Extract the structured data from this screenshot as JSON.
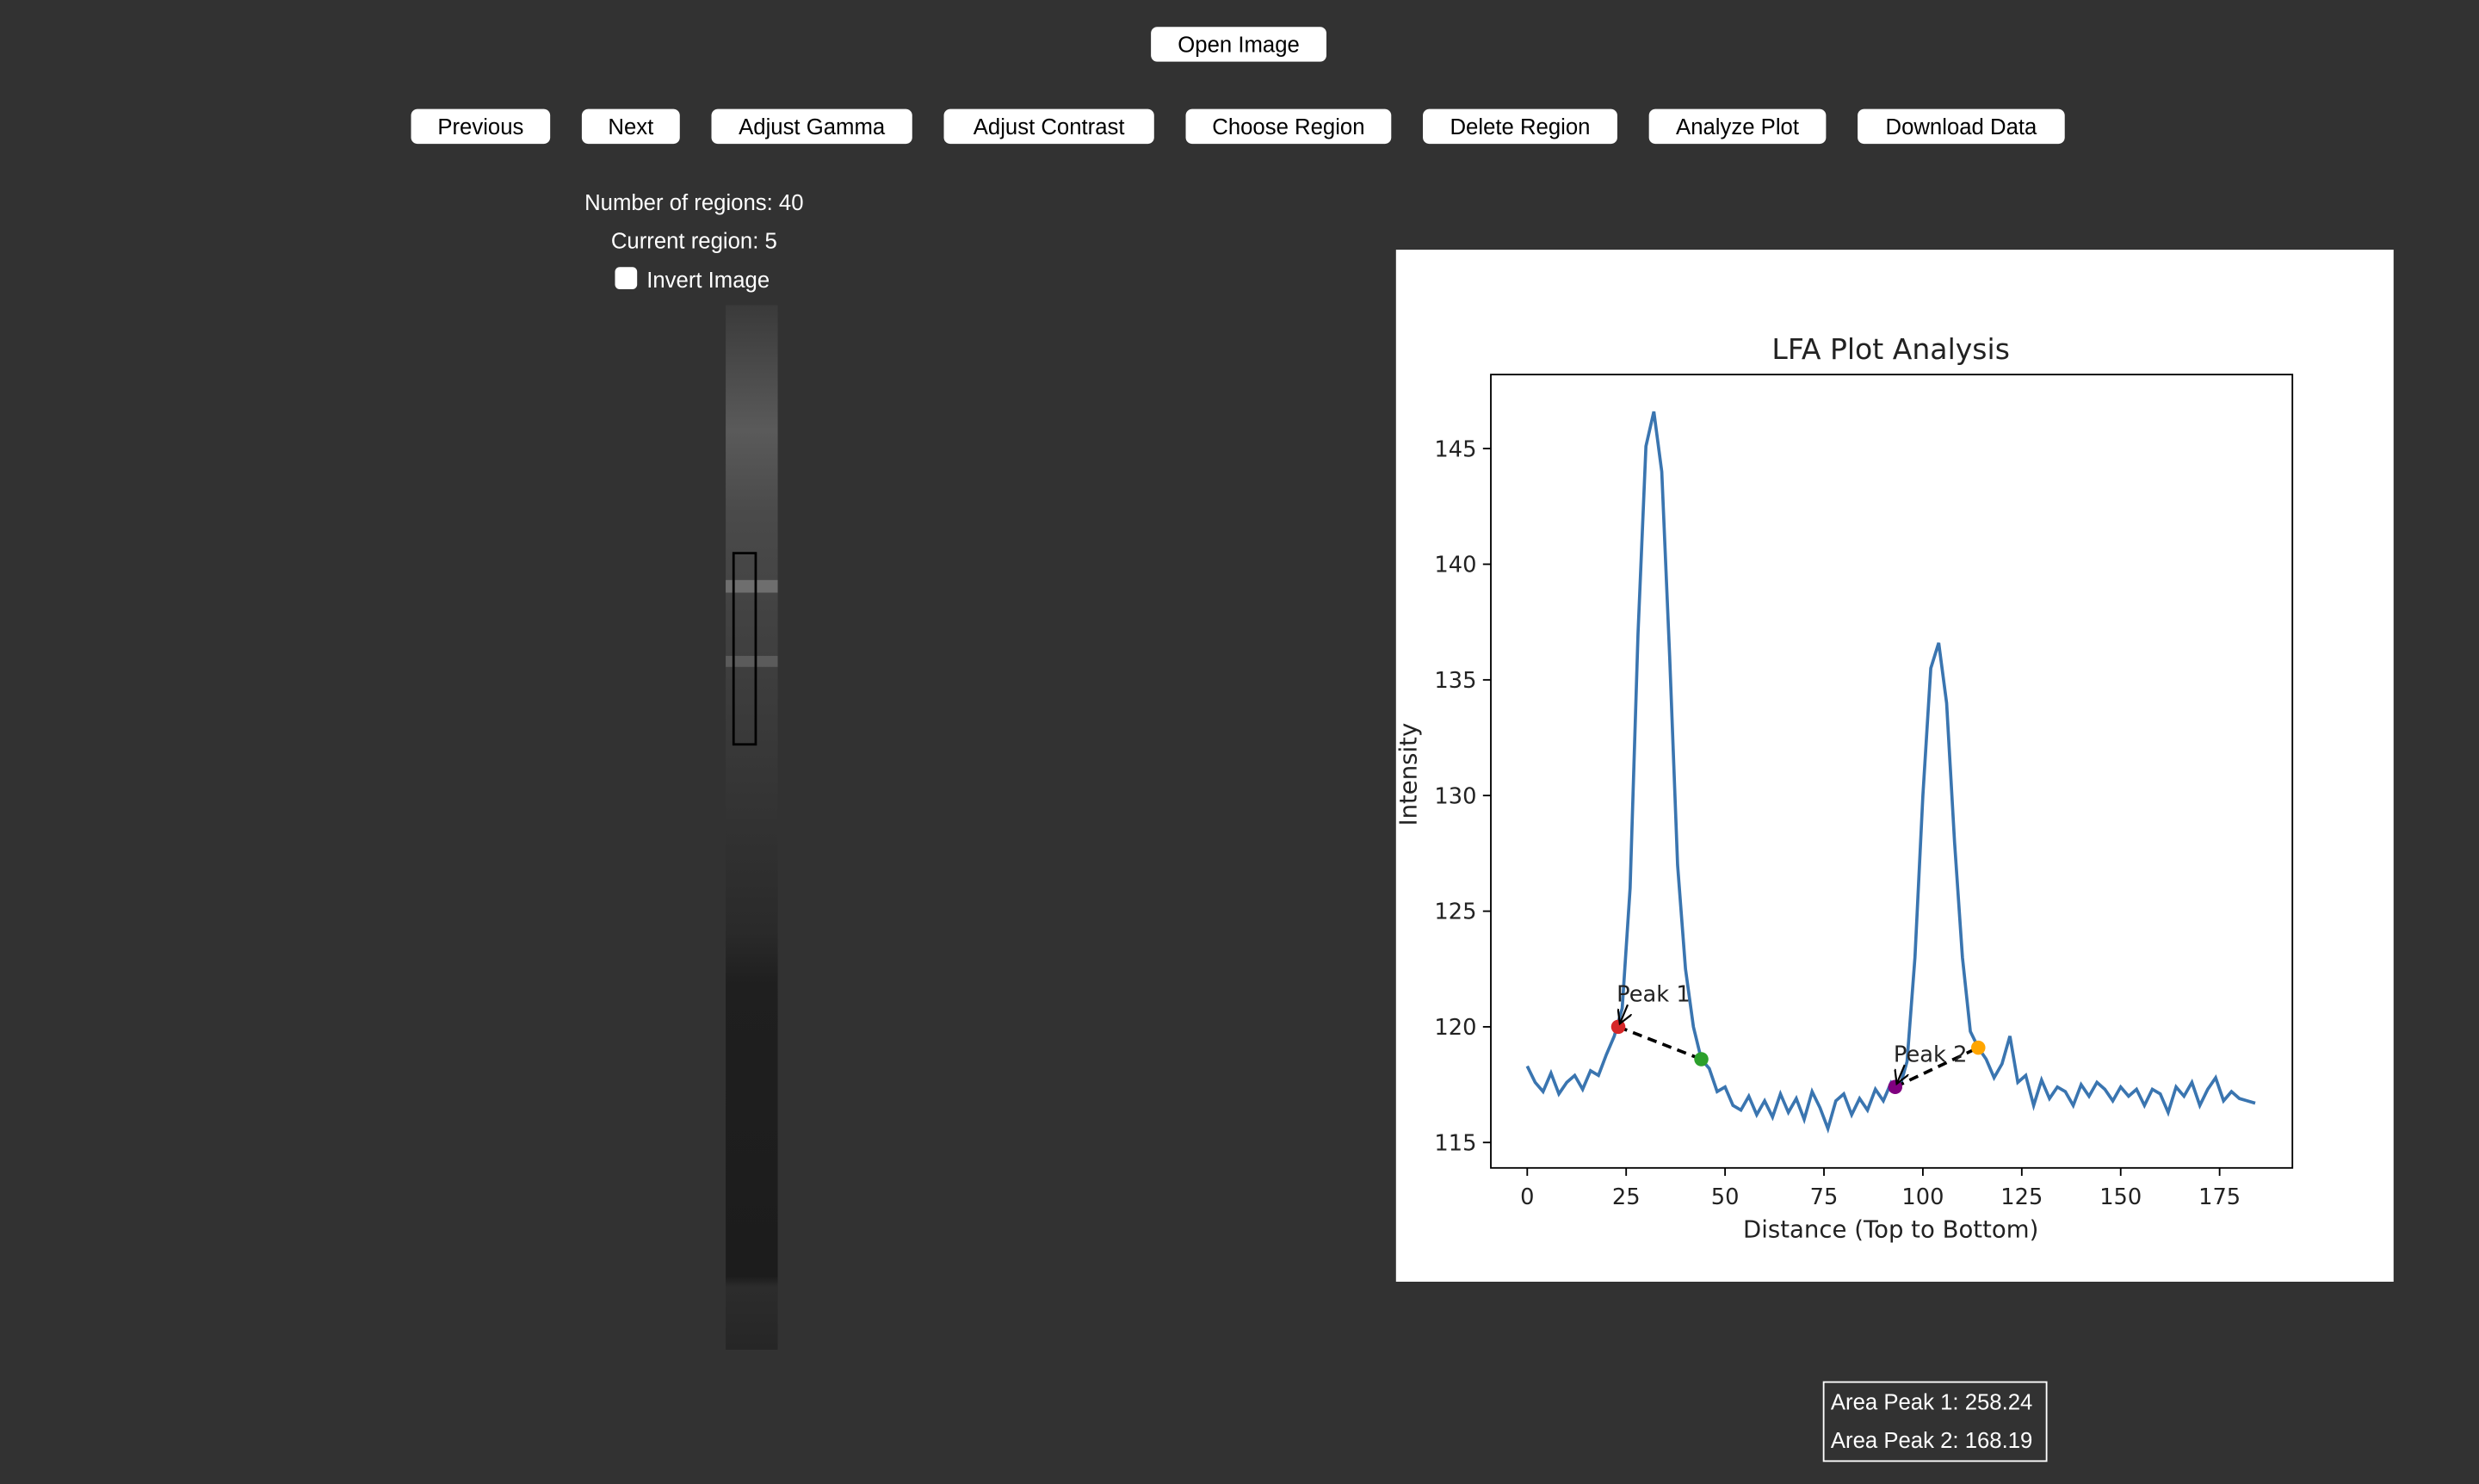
{
  "toolbar": {
    "open": "Open Image",
    "buttons": [
      "Previous",
      "Next",
      "Adjust Gamma",
      "Adjust Contrast",
      "Choose Region",
      "Delete Region",
      "Analyze Plot",
      "Download Data"
    ]
  },
  "status": {
    "regions": "Number of regions: 40",
    "current": "Current region: 5",
    "invert": "Invert Image"
  },
  "chart_data": {
    "type": "line",
    "title": "LFA Plot Analysis",
    "x_label": "Distance (Top to Bottom)",
    "y_label": "Intensity",
    "color": "#3a75b0",
    "x": [
      0,
      2,
      4,
      6,
      8,
      10,
      12,
      14,
      16,
      18,
      20,
      22,
      24,
      26,
      28,
      30,
      32,
      34,
      36,
      38,
      40,
      42,
      44,
      46,
      48,
      50,
      52,
      54,
      56,
      58,
      60,
      62,
      64,
      66,
      68,
      70,
      72,
      74,
      76,
      78,
      80,
      82,
      84,
      86,
      88,
      90,
      92,
      94,
      96,
      98,
      100,
      102,
      104,
      106,
      108,
      110,
      112,
      114,
      116,
      118,
      120,
      122,
      124,
      126,
      128,
      130,
      132,
      134,
      136,
      138,
      140,
      142,
      144,
      146,
      148,
      150,
      152,
      154,
      156,
      158,
      160,
      162,
      164,
      166,
      168,
      170,
      172,
      174,
      176,
      178,
      180,
      182,
      184
    ],
    "values": [
      118.3,
      117.6,
      117.2,
      118.0,
      117.1,
      117.6,
      117.9,
      117.3,
      118.1,
      117.9,
      118.8,
      119.6,
      120.8,
      126,
      137,
      145.1,
      146.6,
      144,
      136,
      127,
      122.5,
      120,
      118.6,
      118.2,
      117.2,
      117.4,
      116.6,
      116.4,
      117.0,
      116.2,
      116.8,
      116.1,
      117.1,
      116.3,
      116.9,
      116.0,
      117.2,
      116.5,
      115.6,
      116.8,
      117.1,
      116.2,
      116.9,
      116.4,
      117.3,
      116.8,
      117.6,
      117.3,
      118.5,
      123,
      130,
      135.5,
      136.6,
      134,
      128,
      123,
      119.8,
      119.1,
      118.6,
      117.8,
      118.4,
      119.6,
      117.6,
      117.9,
      116.6,
      117.7,
      116.9,
      117.4,
      117.2,
      116.6,
      117.5,
      117.0,
      117.6,
      117.3,
      116.8,
      117.4,
      117.0,
      117.3,
      116.6,
      117.3,
      117.1,
      116.3,
      117.4,
      117.0,
      117.6,
      116.6,
      117.3,
      117.8,
      116.8,
      117.2,
      116.9,
      116.8,
      116.7
    ],
    "xlim": [
      -9.2,
      193.4
    ],
    "ylim": [
      113.9,
      148.2
    ],
    "xticks": [
      0,
      25,
      50,
      75,
      100,
      125,
      150,
      175
    ],
    "yticks": [
      115,
      120,
      125,
      130,
      135,
      140,
      145
    ],
    "peaks": [
      {
        "label": "Peak 1",
        "start": {
          "x": 23,
          "y": 120.0,
          "color": "#d62728"
        },
        "end": {
          "x": 44,
          "y": 118.6,
          "color": "#2ca02c"
        }
      },
      {
        "label": "Peak 2",
        "start": {
          "x": 93,
          "y": 117.4,
          "color": "#800080"
        },
        "end": {
          "x": 114,
          "y": 119.1,
          "color": "#ffa500"
        }
      }
    ]
  },
  "results": [
    "Area Peak 1: 258.24",
    "Area Peak 2: 168.19"
  ]
}
